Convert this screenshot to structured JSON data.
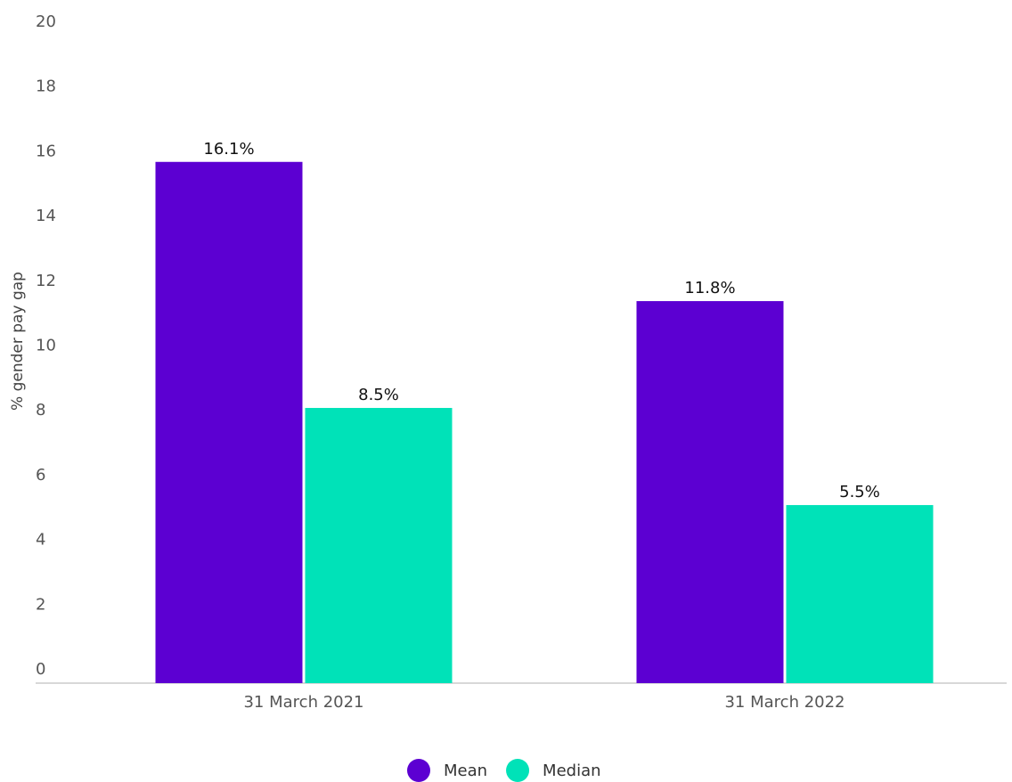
{
  "chart_data": {
    "type": "bar",
    "y_label": "% gender pay gap",
    "categories": [
      "31 March 2021",
      "31 March 2022"
    ],
    "series": [
      {
        "name": "Mean",
        "color": "#5c00d2",
        "values": [
          16.1,
          11.8
        ],
        "value_labels": [
          "16.1%",
          "11.8%"
        ]
      },
      {
        "name": "Median",
        "color": "#00e2b8",
        "values": [
          8.5,
          5.5
        ],
        "value_labels": [
          "8.5%",
          "5.5%"
        ]
      }
    ],
    "ylim": [
      0,
      20
    ],
    "yticks": [
      0,
      2,
      4,
      6,
      8,
      10,
      12,
      14,
      16,
      18,
      20
    ],
    "grid": false
  }
}
